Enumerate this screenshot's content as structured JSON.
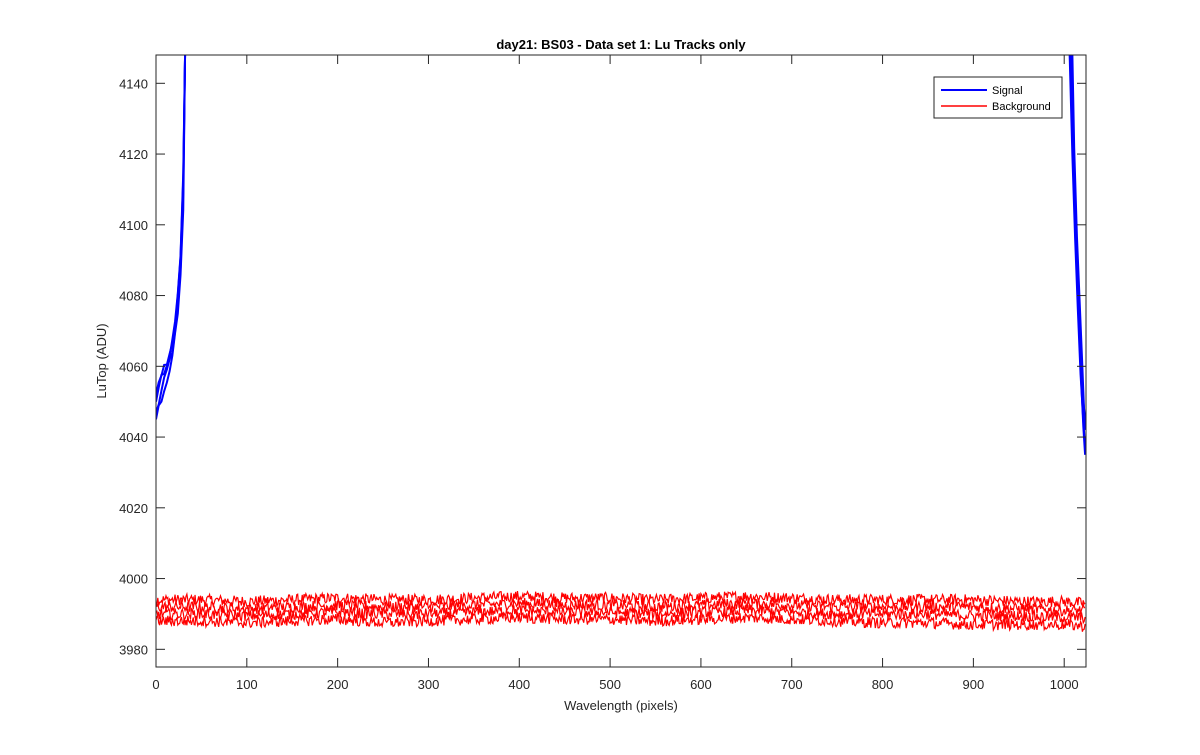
{
  "chart_data": {
    "type": "line",
    "title": "day21: BS03 - Data set 1: Lu Tracks only",
    "xlabel": "Wavelength (pixels)",
    "ylabel": "LuTop (ADU)",
    "xlim": [
      0,
      1024
    ],
    "ylim": [
      3975,
      4148
    ],
    "xticks": [
      0,
      100,
      200,
      300,
      400,
      500,
      600,
      700,
      800,
      900,
      1000
    ],
    "yticks": [
      3980,
      4000,
      4020,
      4040,
      4060,
      4080,
      4100,
      4120,
      4140
    ],
    "grid": false,
    "legend": {
      "placement": "top-right",
      "entries": [
        {
          "label": "Signal",
          "color": "#0000ff"
        },
        {
          "label": "Background",
          "color": "#ff0000"
        }
      ]
    },
    "series": [
      {
        "group": "Signal",
        "color": "#0000ff",
        "points": [
          [
            0,
            4052
          ],
          [
            3,
            4055
          ],
          [
            6,
            4058
          ],
          [
            9,
            4060
          ],
          [
            12,
            4059
          ],
          [
            15,
            4063
          ],
          [
            18,
            4066
          ],
          [
            21,
            4072
          ],
          [
            24,
            4079
          ],
          [
            27,
            4090
          ],
          [
            30,
            4112
          ],
          [
            32,
            4148
          ],
          [
            1008,
            4148
          ],
          [
            1010,
            4125
          ],
          [
            1013,
            4100
          ],
          [
            1016,
            4080
          ],
          [
            1019,
            4060
          ],
          [
            1021,
            4050
          ],
          [
            1023,
            4045
          ]
        ]
      },
      {
        "group": "Signal",
        "color": "#0000ff",
        "points": [
          [
            0,
            4047
          ],
          [
            3,
            4050
          ],
          [
            6,
            4054
          ],
          [
            9,
            4056
          ],
          [
            12,
            4058
          ],
          [
            15,
            4061
          ],
          [
            18,
            4065
          ],
          [
            21,
            4070
          ],
          [
            24,
            4077
          ],
          [
            27,
            4088
          ],
          [
            30,
            4110
          ],
          [
            32,
            4148
          ],
          [
            1006,
            4148
          ],
          [
            1009,
            4120
          ],
          [
            1012,
            4095
          ],
          [
            1015,
            4075
          ],
          [
            1018,
            4058
          ],
          [
            1021,
            4045
          ],
          [
            1023,
            4037
          ]
        ]
      },
      {
        "group": "Signal",
        "color": "#0000ff",
        "points": [
          [
            0,
            4045
          ],
          [
            3,
            4048
          ],
          [
            6,
            4051
          ],
          [
            9,
            4054
          ],
          [
            12,
            4056
          ],
          [
            15,
            4059
          ],
          [
            18,
            4063
          ],
          [
            21,
            4068
          ],
          [
            24,
            4075
          ],
          [
            27,
            4085
          ],
          [
            30,
            4105
          ],
          [
            32,
            4148
          ],
          [
            1007,
            4148
          ],
          [
            1010,
            4118
          ],
          [
            1013,
            4092
          ],
          [
            1016,
            4072
          ],
          [
            1019,
            4055
          ],
          [
            1021,
            4043
          ],
          [
            1023,
            4035
          ]
        ]
      },
      {
        "group": "Signal",
        "color": "#0000ff",
        "points": [
          [
            0,
            4050
          ],
          [
            3,
            4053
          ],
          [
            6,
            4057
          ],
          [
            9,
            4059
          ],
          [
            12,
            4060
          ],
          [
            15,
            4064
          ],
          [
            18,
            4067
          ],
          [
            21,
            4073
          ],
          [
            24,
            4080
          ],
          [
            27,
            4092
          ],
          [
            30,
            4115
          ],
          [
            32,
            4148
          ],
          [
            1009,
            4148
          ],
          [
            1011,
            4122
          ],
          [
            1014,
            4097
          ],
          [
            1017,
            4077
          ],
          [
            1020,
            4060
          ],
          [
            1022,
            4048
          ],
          [
            1023,
            4042
          ]
        ]
      },
      {
        "group": "Background",
        "color": "#ff0000",
        "points": [
          [
            0,
            3994
          ],
          [
            50,
            3994
          ],
          [
            100,
            3993.5
          ],
          [
            150,
            3994
          ],
          [
            200,
            3994.5
          ],
          [
            250,
            3994
          ],
          [
            300,
            3994
          ],
          [
            350,
            3994.5
          ],
          [
            400,
            3995
          ],
          [
            450,
            3994.5
          ],
          [
            500,
            3994.5
          ],
          [
            550,
            3994
          ],
          [
            600,
            3994.5
          ],
          [
            650,
            3995
          ],
          [
            700,
            3994.5
          ],
          [
            750,
            3994
          ],
          [
            800,
            3994
          ],
          [
            850,
            3994
          ],
          [
            900,
            3994
          ],
          [
            950,
            3993.5
          ],
          [
            1000,
            3993.5
          ],
          [
            1023,
            3993
          ]
        ]
      },
      {
        "group": "Background",
        "color": "#ff0000",
        "points": [
          [
            0,
            3992
          ],
          [
            50,
            3992
          ],
          [
            100,
            3991.5
          ],
          [
            150,
            3992
          ],
          [
            200,
            3992.5
          ],
          [
            250,
            3992
          ],
          [
            300,
            3992
          ],
          [
            350,
            3992.5
          ],
          [
            400,
            3993
          ],
          [
            450,
            3992.5
          ],
          [
            500,
            3992.5
          ],
          [
            550,
            3992
          ],
          [
            600,
            3992.5
          ],
          [
            650,
            3993
          ],
          [
            700,
            3992.5
          ],
          [
            750,
            3992
          ],
          [
            800,
            3992
          ],
          [
            850,
            3992
          ],
          [
            900,
            3992
          ],
          [
            950,
            3991.5
          ],
          [
            1000,
            3991
          ],
          [
            1023,
            3991
          ]
        ]
      },
      {
        "group": "Background",
        "color": "#ff0000",
        "points": [
          [
            0,
            3990
          ],
          [
            50,
            3990
          ],
          [
            100,
            3989.5
          ],
          [
            150,
            3990
          ],
          [
            200,
            3990.5
          ],
          [
            250,
            3990
          ],
          [
            300,
            3990
          ],
          [
            350,
            3990.5
          ],
          [
            400,
            3991
          ],
          [
            450,
            3990.5
          ],
          [
            500,
            3990.5
          ],
          [
            550,
            3990
          ],
          [
            600,
            3990.5
          ],
          [
            650,
            3991
          ],
          [
            700,
            3990.5
          ],
          [
            750,
            3990
          ],
          [
            800,
            3990
          ],
          [
            850,
            3990
          ],
          [
            900,
            3989.5
          ],
          [
            950,
            3989.5
          ],
          [
            1000,
            3989
          ],
          [
            1023,
            3989
          ]
        ]
      },
      {
        "group": "Background",
        "color": "#ff0000",
        "points": [
          [
            0,
            3988
          ],
          [
            50,
            3988
          ],
          [
            100,
            3987.5
          ],
          [
            150,
            3988
          ],
          [
            200,
            3988.5
          ],
          [
            250,
            3987.5
          ],
          [
            300,
            3988
          ],
          [
            350,
            3988.5
          ],
          [
            400,
            3989
          ],
          [
            450,
            3988.5
          ],
          [
            500,
            3988.5
          ],
          [
            550,
            3988
          ],
          [
            600,
            3988.5
          ],
          [
            650,
            3989
          ],
          [
            700,
            3988.5
          ],
          [
            750,
            3988
          ],
          [
            800,
            3987.5
          ],
          [
            850,
            3987.5
          ],
          [
            900,
            3987
          ],
          [
            950,
            3987
          ],
          [
            1000,
            3987
          ],
          [
            1023,
            3986.5
          ]
        ]
      }
    ]
  }
}
